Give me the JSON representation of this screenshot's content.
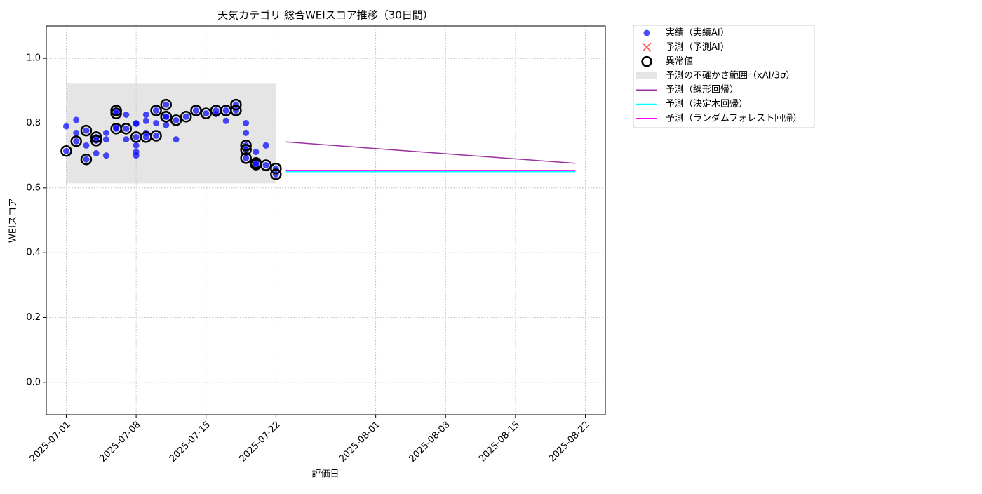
{
  "chart_data": {
    "type": "scatter",
    "title": "天気カテゴリ 総合WEIスコア推移（30日間）",
    "x_label": "評価日",
    "y_label": "WEIスコア",
    "xlim": [
      "2025-06-29",
      "2025-08-24"
    ],
    "xticks": [
      "2025-07-01",
      "2025-07-08",
      "2025-07-15",
      "2025-07-22",
      "2025-08-01",
      "2025-08-08",
      "2025-08-15",
      "2025-08-22"
    ],
    "ylim": [
      -0.1,
      1.1
    ],
    "yticks": [
      {
        "value": 0,
        "label": "0.0"
      },
      0.2,
      0.4,
      0.6,
      0.8,
      {
        "value": 1,
        "label": "1.0"
      }
    ],
    "grid": true,
    "legend": "outside-upper-right",
    "series": [
      {
        "name": "予測の不確かさ範囲（xAI/3σ）",
        "kind": "band",
        "color": "#cccccc",
        "x": [
          "2025-07-01",
          "2025-07-22"
        ],
        "lower": 0.614,
        "upper": 0.924
      },
      {
        "name": "実績（実績AI）",
        "kind": "dot",
        "color": "#0000ff",
        "x": [
          "2025-07-01",
          "2025-07-02",
          "2025-07-02",
          "2025-07-01",
          "2025-07-02",
          "2025-07-03",
          "2025-07-03",
          "2025-07-03",
          "2025-07-04",
          "2025-07-04",
          "2025-07-04",
          "2025-07-05",
          "2025-07-05",
          "2025-07-05",
          "2025-07-06",
          "2025-07-06",
          "2025-07-06",
          "2025-07-06",
          "2025-07-07",
          "2025-07-07",
          "2025-07-07",
          "2025-07-08",
          "2025-07-08",
          "2025-07-08",
          "2025-07-08",
          "2025-07-08",
          "2025-07-08",
          "2025-07-09",
          "2025-07-09",
          "2025-07-09",
          "2025-07-09",
          "2025-07-10",
          "2025-07-10",
          "2025-07-10",
          "2025-07-11",
          "2025-07-11",
          "2025-07-11",
          "2025-07-11",
          "2025-07-12",
          "2025-07-12",
          "2025-07-13",
          "2025-07-14",
          "2025-07-15",
          "2025-07-16",
          "2025-07-16",
          "2025-07-17",
          "2025-07-17",
          "2025-07-18",
          "2025-07-18",
          "2025-07-19",
          "2025-07-19",
          "2025-07-19",
          "2025-07-19",
          "2025-07-19",
          "2025-07-20",
          "2025-07-20",
          "2025-07-20",
          "2025-07-21",
          "2025-07-21",
          "2025-07-22",
          "2025-07-22"
        ],
        "values": [
          0.79,
          0.81,
          0.77,
          0.714,
          0.744,
          0.777,
          0.688,
          0.731,
          0.746,
          0.757,
          0.707,
          0.75,
          0.77,
          0.7,
          0.787,
          0.839,
          0.83,
          0.783,
          0.783,
          0.826,
          0.75,
          0.711,
          0.7,
          0.731,
          0.798,
          0.8,
          0.757,
          0.77,
          0.826,
          0.807,
          0.757,
          0.8,
          0.839,
          0.761,
          0.82,
          0.794,
          0.857,
          0.82,
          0.809,
          0.75,
          0.82,
          0.839,
          0.83,
          0.839,
          0.828,
          0.839,
          0.807,
          0.857,
          0.839,
          0.8,
          0.77,
          0.731,
          0.718,
          0.692,
          0.677,
          0.672,
          0.711,
          0.67,
          0.731,
          0.66,
          0.642
        ]
      },
      {
        "name": "予測（予測AI）",
        "kind": "cross",
        "color": "#ff0000",
        "x": [],
        "values": []
      },
      {
        "name": "異常値",
        "kind": "ring",
        "color": "#000000",
        "x": [
          "2025-07-01",
          "2025-07-02",
          "2025-07-03",
          "2025-07-03",
          "2025-07-04",
          "2025-07-04",
          "2025-07-06",
          "2025-07-06",
          "2025-07-06",
          "2025-07-07",
          "2025-07-08",
          "2025-07-09",
          "2025-07-10",
          "2025-07-10",
          "2025-07-11",
          "2025-07-11",
          "2025-07-11",
          "2025-07-12",
          "2025-07-13",
          "2025-07-14",
          "2025-07-15",
          "2025-07-16",
          "2025-07-17",
          "2025-07-18",
          "2025-07-18",
          "2025-07-19",
          "2025-07-19",
          "2025-07-19",
          "2025-07-20",
          "2025-07-20",
          "2025-07-21",
          "2025-07-22",
          "2025-07-22"
        ],
        "values": [
          0.714,
          0.744,
          0.777,
          0.688,
          0.746,
          0.757,
          0.839,
          0.83,
          0.783,
          0.783,
          0.757,
          0.757,
          0.839,
          0.761,
          0.82,
          0.857,
          0.82,
          0.809,
          0.82,
          0.839,
          0.83,
          0.839,
          0.839,
          0.857,
          0.839,
          0.731,
          0.718,
          0.692,
          0.677,
          0.672,
          0.67,
          0.66,
          0.642
        ]
      },
      {
        "name": "予測（線形回帰）",
        "kind": "line",
        "color": "#9b30a0",
        "x": [
          "2025-07-23",
          "2025-08-21"
        ],
        "values": [
          0.742,
          0.676
        ]
      },
      {
        "name": "予測（決定木回帰）",
        "kind": "line",
        "color": "#00ffff",
        "x": [
          "2025-07-23",
          "2025-08-21"
        ],
        "values": [
          0.65,
          0.65
        ]
      },
      {
        "name": "予測（ランダムフォレスト回帰）",
        "kind": "line",
        "color": "#ff00ff",
        "x": [
          "2025-07-23",
          "2025-08-21"
        ],
        "values": [
          0.654,
          0.654
        ]
      }
    ]
  }
}
